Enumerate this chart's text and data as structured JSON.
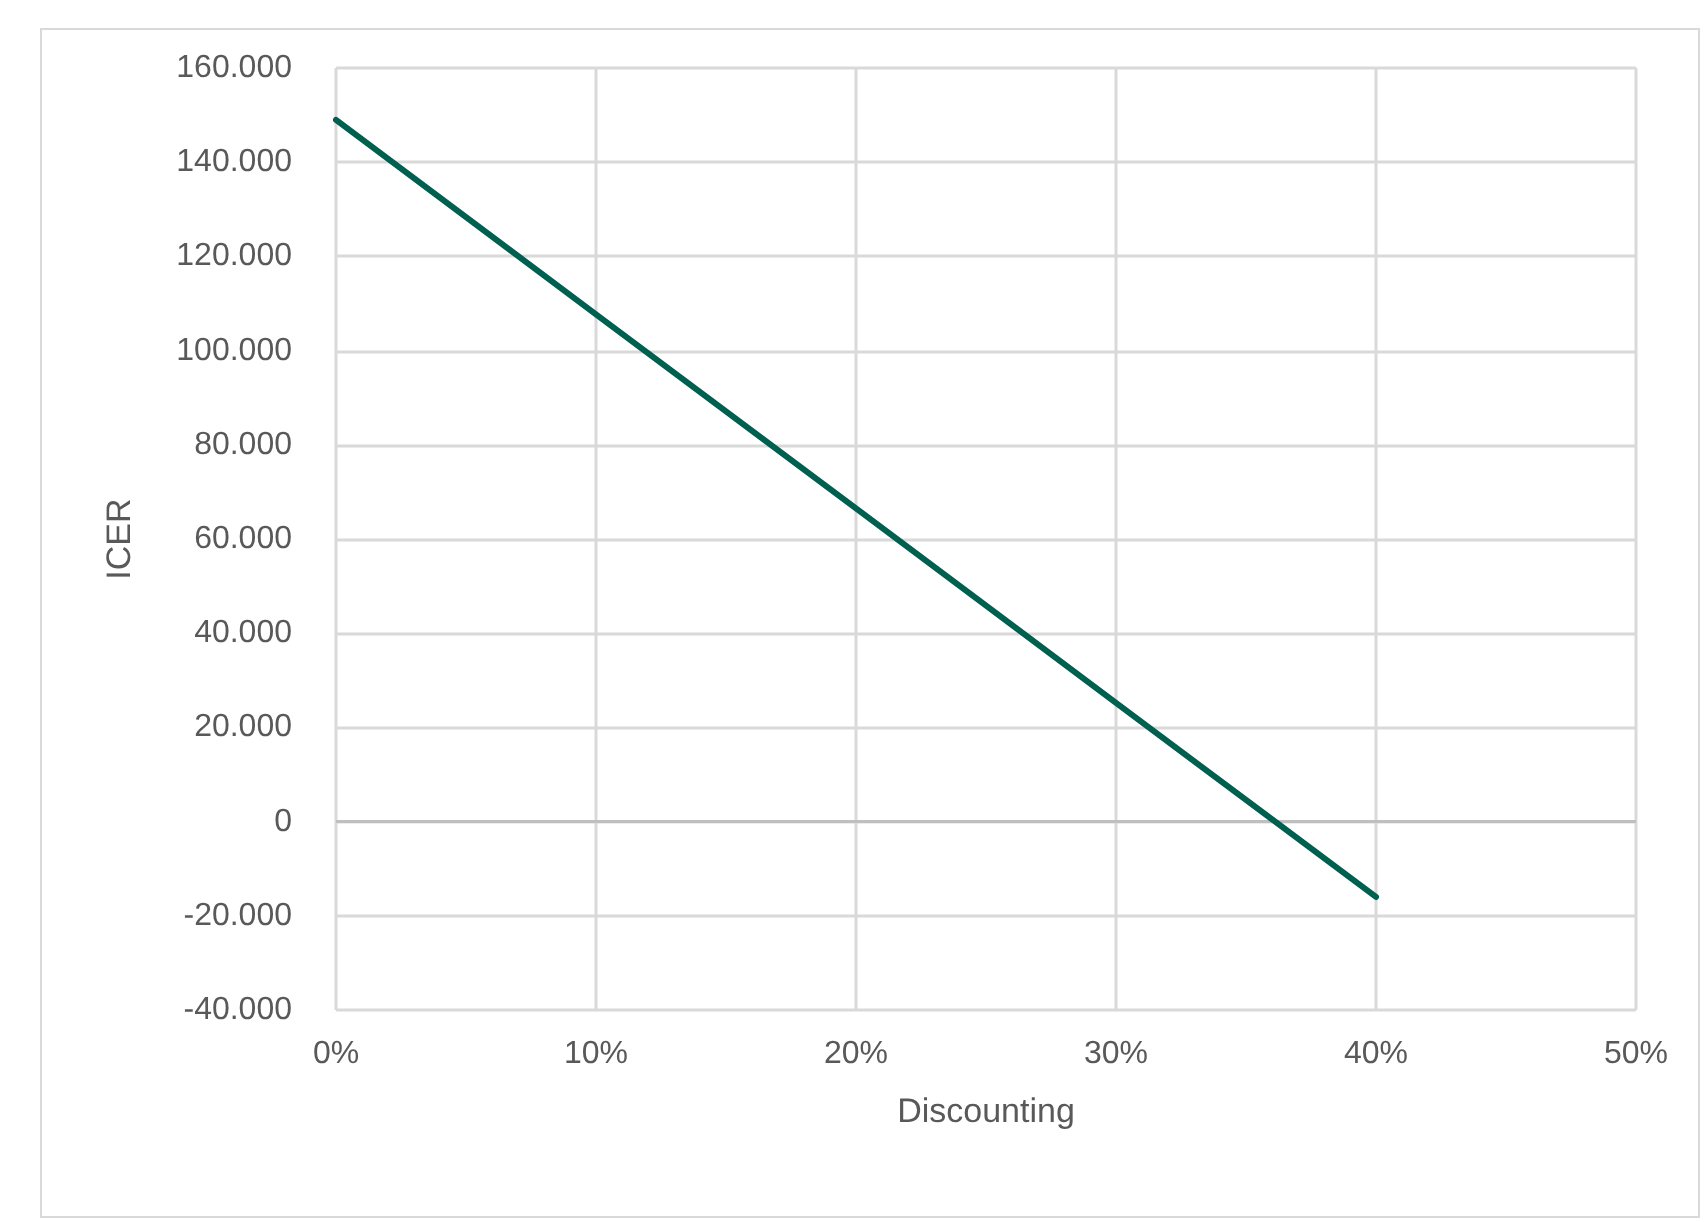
{
  "chart_data": {
    "type": "line",
    "xlabel": "Discounting",
    "ylabel": "ICER",
    "x": [
      0,
      0.1,
      0.2,
      0.3,
      0.4
    ],
    "series": [
      {
        "color": "#00604f",
        "values": [
          149000,
          107700,
          66500,
          25200,
          -16000
        ]
      }
    ],
    "xlim": [
      0,
      0.5
    ],
    "xticks": [
      {
        "value": 0,
        "label": "0%"
      },
      {
        "value": 0.1,
        "label": "10%"
      },
      {
        "value": 0.2,
        "label": "20%"
      },
      {
        "value": 0.3,
        "label": "30%"
      },
      {
        "value": 0.4,
        "label": "40%"
      },
      {
        "value": 0.5,
        "label": "50%"
      }
    ],
    "ylim": [
      -40000,
      160000
    ],
    "yticks": [
      {
        "value": -40000,
        "label": "-40.000"
      },
      {
        "value": -20000,
        "label": "-20.000"
      },
      {
        "value": 0,
        "label": "0"
      },
      {
        "value": 20000,
        "label": "20.000"
      },
      {
        "value": 40000,
        "label": "40.000"
      },
      {
        "value": 60000,
        "label": "60.000"
      },
      {
        "value": 80000,
        "label": "80.000"
      },
      {
        "value": 100000,
        "label": "100.000"
      },
      {
        "value": 120000,
        "label": "120.000"
      },
      {
        "value": 140000,
        "label": "140.000"
      },
      {
        "value": 160000,
        "label": "160.000"
      }
    ],
    "grid": true,
    "marker": "none",
    "line_style": "solid"
  }
}
